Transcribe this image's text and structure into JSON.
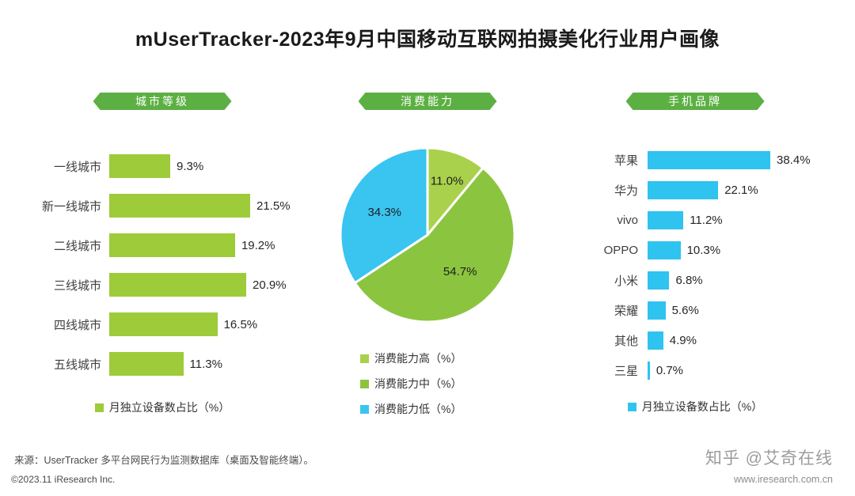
{
  "title": "mUserTracker-2023年9月中国移动互联网拍摄美化行业用户画像",
  "panels": {
    "city": {
      "badge": "城市等级",
      "legend": "月独立设备数占比（%）"
    },
    "consumption": {
      "badge": "消费能力"
    },
    "brand": {
      "badge": "手机品牌",
      "legend": "月独立设备数占比（%）"
    }
  },
  "chart_data": [
    {
      "type": "bar",
      "orientation": "horizontal",
      "title": "城市等级",
      "series_label": "月独立设备数占比（%）",
      "categories": [
        "一线城市",
        "新一线城市",
        "二线城市",
        "三线城市",
        "四线城市",
        "五线城市"
      ],
      "values": [
        9.3,
        21.5,
        19.2,
        20.9,
        16.5,
        11.3
      ],
      "bar_color": "#9ecb3a",
      "xlim": [
        0,
        25
      ]
    },
    {
      "type": "pie",
      "title": "消费能力",
      "labels": [
        "消费能力高（%）",
        "消费能力中（%）",
        "消费能力低（%）"
      ],
      "values": [
        11.0,
        54.7,
        34.3
      ],
      "colors": [
        "#a9d14c",
        "#8bc53f",
        "#3ac4f0"
      ],
      "start_angle": "top",
      "direction": "clockwise",
      "legend_position": "bottom"
    },
    {
      "type": "bar",
      "orientation": "horizontal",
      "title": "手机品牌",
      "series_label": "月独立设备数占比（%）",
      "categories": [
        "苹果",
        "华为",
        "vivo",
        "OPPO",
        "小米",
        "荣耀",
        "其他",
        "三星"
      ],
      "values": [
        38.4,
        22.1,
        11.2,
        10.3,
        6.8,
        5.6,
        4.9,
        0.7
      ],
      "bar_color": "#2fc3f0",
      "xlim": [
        0,
        45
      ]
    }
  ],
  "colors": {
    "badge_green": "#5cb043",
    "city_bar": "#9ecb3a",
    "brand_bar": "#2fc3f0",
    "pie_high": "#a9d14c",
    "pie_mid": "#8bc53f",
    "pie_low": "#3ac4f0"
  },
  "footer": {
    "source": "来源：UserTracker 多平台网民行为监测数据库（桌面及智能终端）。",
    "copyright": "©2023.11 iResearch Inc.",
    "watermark": "知乎 @艾奇在线",
    "url": "www.iresearch.com.cn"
  }
}
